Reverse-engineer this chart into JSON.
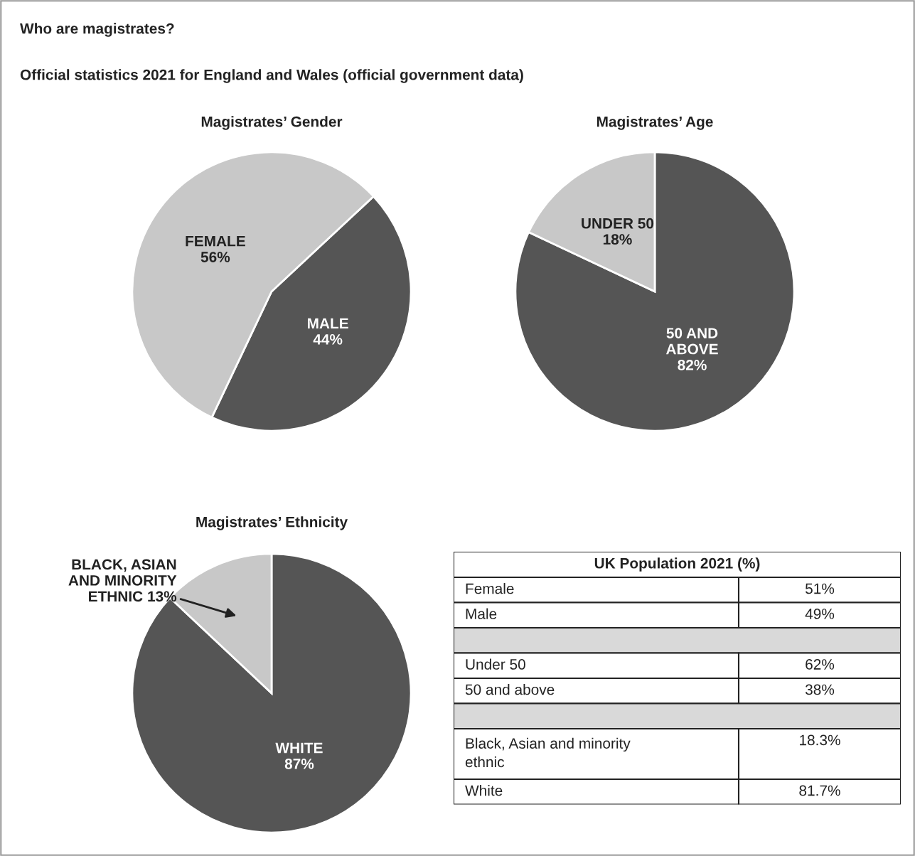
{
  "chart_data": [
    {
      "type": "pie",
      "title": "Magistrates’ Gender",
      "annotations": [
        "Who are magistrates?",
        "Official statistics 2021 for England and Wales (official government data)"
      ],
      "categories": [
        "MALE",
        "FEMALE"
      ],
      "values": [
        44,
        56
      ],
      "value_labels": [
        "44%",
        "56%"
      ],
      "colors": [
        "#555555",
        "#c8c8c8"
      ]
    },
    {
      "type": "pie",
      "title": "Magistrates’ Age",
      "categories": [
        "50 AND\nABOVE",
        "UNDER 50"
      ],
      "values": [
        82,
        18
      ],
      "value_labels": [
        "82%",
        "18%"
      ],
      "colors": [
        "#555555",
        "#c8c8c8"
      ]
    },
    {
      "type": "pie",
      "title": "Magistrates’ Ethnicity",
      "categories": [
        "WHITE",
        "BLACK, ASIAN\nAND MINORITY\nETHNIC"
      ],
      "values": [
        87,
        13
      ],
      "value_labels": [
        "87%",
        "13%"
      ],
      "colors": [
        "#555555",
        "#c8c8c8"
      ]
    },
    {
      "type": "other",
      "title": "UK Population 2021 (%)",
      "categories": [
        "Female",
        "Male",
        null,
        "Under 50",
        "50 and above",
        null,
        "Black, Asian and minority\nethnic",
        "White"
      ],
      "values": [
        51,
        49,
        null,
        62,
        38,
        null,
        18.3,
        81.7
      ],
      "value_labels": [
        "51%",
        "49%",
        null,
        "62%",
        "38%",
        null,
        "18.3%",
        "81.7%"
      ]
    }
  ]
}
